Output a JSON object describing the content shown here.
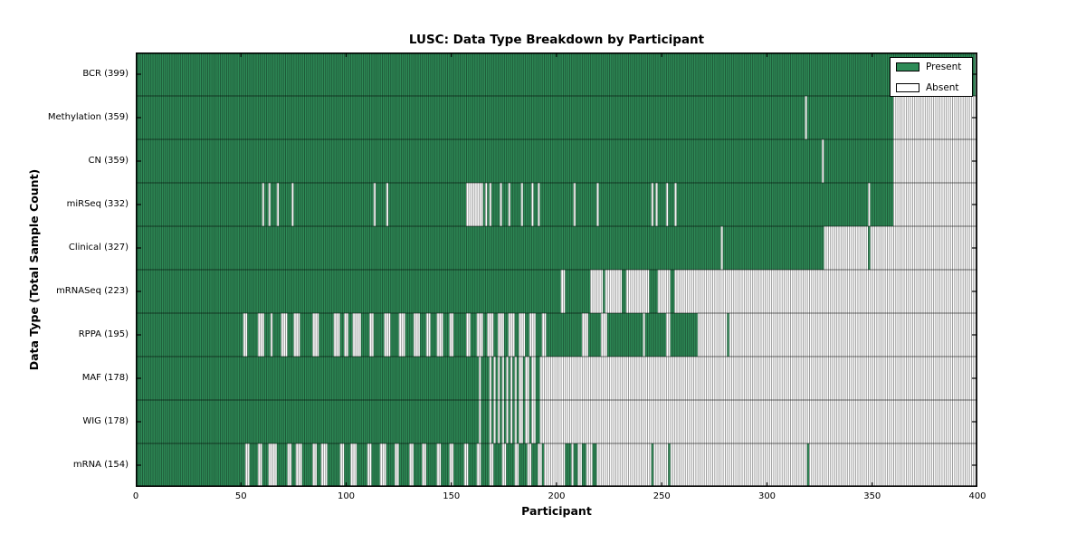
{
  "title": "LUSC: Data Type Breakdown by Participant",
  "legend": {
    "present_label": "Present",
    "absent_label": "Absent"
  },
  "colors": {
    "present": "#2e8b57",
    "absent": "#ffffff",
    "present_stripe": "rgba(0,0,0,0.38)",
    "absent_stripe": "rgba(0,0,0,0.42)",
    "frame": "#000000"
  },
  "chart_data": {
    "type": "heatmap",
    "title": "LUSC: Data Type Breakdown by Participant",
    "xlabel": "Participant",
    "ylabel": "Data Type (Total Sample Count)",
    "xlim": [
      0,
      400
    ],
    "x_ticks": [
      0,
      50,
      100,
      150,
      200,
      250,
      300,
      350,
      400
    ],
    "grid": false,
    "legend_entries": [
      "Present",
      "Absent"
    ],
    "legend_position": "upper right",
    "cell_states": [
      "present",
      "absent"
    ],
    "rows": [
      {
        "label": "BCR (399)",
        "name": "BCR",
        "total": 399,
        "present_ranges": [
          [
            0,
            399
          ]
        ]
      },
      {
        "label": "Methylation (359)",
        "name": "Methylation",
        "total": 359,
        "present_ranges": [
          [
            0,
            318
          ],
          [
            319,
            360
          ]
        ]
      },
      {
        "label": "CN (359)",
        "name": "CN",
        "total": 359,
        "present_ranges": [
          [
            0,
            326
          ],
          [
            327,
            360
          ]
        ]
      },
      {
        "label": "miRSeq (332)",
        "name": "miRSeq",
        "total": 332,
        "present_ranges": [
          [
            0,
            60
          ],
          [
            61,
            63
          ],
          [
            64,
            67
          ],
          [
            68,
            74
          ],
          [
            75,
            113
          ],
          [
            114,
            119
          ],
          [
            120,
            157
          ],
          [
            165,
            166
          ],
          [
            167,
            168
          ],
          [
            169,
            173
          ],
          [
            174,
            177
          ],
          [
            178,
            183
          ],
          [
            184,
            188
          ],
          [
            189,
            191
          ],
          [
            192,
            208
          ],
          [
            209,
            219
          ],
          [
            220,
            245
          ],
          [
            246,
            247
          ],
          [
            248,
            252
          ],
          [
            253,
            256
          ],
          [
            257,
            348
          ],
          [
            349,
            360
          ]
        ]
      },
      {
        "label": "Clinical (327)",
        "name": "Clinical",
        "total": 327,
        "present_ranges": [
          [
            0,
            278
          ],
          [
            279,
            327
          ],
          [
            348,
            349
          ]
        ]
      },
      {
        "label": "mRNASeq (223)",
        "name": "mRNASeq",
        "total": 223,
        "present_ranges": [
          [
            0,
            202
          ],
          [
            204,
            216
          ],
          [
            222,
            223
          ],
          [
            231,
            233
          ],
          [
            244,
            248
          ],
          [
            254,
            256
          ]
        ]
      },
      {
        "label": "RPPA (195)",
        "name": "RPPA",
        "total": 195,
        "present_ranges": [
          [
            0,
            51
          ],
          [
            53,
            58
          ],
          [
            61,
            64
          ],
          [
            65,
            69
          ],
          [
            72,
            75
          ],
          [
            78,
            84
          ],
          [
            87,
            94
          ],
          [
            97,
            99
          ],
          [
            101,
            103
          ],
          [
            107,
            111
          ],
          [
            113,
            118
          ],
          [
            121,
            125
          ],
          [
            128,
            132
          ],
          [
            135,
            138
          ],
          [
            140,
            143
          ],
          [
            146,
            149
          ],
          [
            151,
            157
          ],
          [
            159,
            162
          ],
          [
            165,
            167
          ],
          [
            170,
            172
          ],
          [
            175,
            177
          ],
          [
            180,
            182
          ],
          [
            185,
            187
          ],
          [
            190,
            193
          ],
          [
            195,
            212
          ],
          [
            215,
            221
          ],
          [
            224,
            241
          ],
          [
            242,
            252
          ],
          [
            254,
            267
          ],
          [
            281,
            282
          ]
        ]
      },
      {
        "label": "MAF (178)",
        "name": "MAF",
        "total": 178,
        "present_ranges": [
          [
            0,
            163
          ],
          [
            164,
            168
          ],
          [
            169,
            170
          ],
          [
            171,
            172
          ],
          [
            173,
            174
          ],
          [
            175,
            176
          ],
          [
            177,
            178
          ],
          [
            179,
            180
          ],
          [
            181,
            182
          ],
          [
            184,
            185
          ],
          [
            187,
            188
          ],
          [
            190,
            192
          ]
        ]
      },
      {
        "label": "WIG (178)",
        "name": "WIG",
        "total": 178,
        "present_ranges": [
          [
            0,
            163
          ],
          [
            164,
            168
          ],
          [
            169,
            170
          ],
          [
            171,
            172
          ],
          [
            173,
            174
          ],
          [
            175,
            176
          ],
          [
            177,
            178
          ],
          [
            179,
            180
          ],
          [
            181,
            182
          ],
          [
            184,
            185
          ],
          [
            187,
            188
          ],
          [
            190,
            192
          ]
        ]
      },
      {
        "label": "mRNA (154)",
        "name": "mRNA",
        "total": 154,
        "present_ranges": [
          [
            0,
            52
          ],
          [
            54,
            58
          ],
          [
            60,
            63
          ],
          [
            67,
            72
          ],
          [
            74,
            76
          ],
          [
            79,
            84
          ],
          [
            86,
            88
          ],
          [
            91,
            97
          ],
          [
            99,
            102
          ],
          [
            105,
            110
          ],
          [
            112,
            116
          ],
          [
            119,
            123
          ],
          [
            125,
            130
          ],
          [
            132,
            136
          ],
          [
            138,
            143
          ],
          [
            145,
            149
          ],
          [
            151,
            156
          ],
          [
            158,
            162
          ],
          [
            164,
            168
          ],
          [
            170,
            174
          ],
          [
            176,
            180
          ],
          [
            182,
            186
          ],
          [
            188,
            191
          ],
          [
            193,
            194
          ],
          [
            204,
            207
          ],
          [
            208,
            210
          ],
          [
            212,
            214
          ],
          [
            217,
            219
          ],
          [
            245,
            246
          ],
          [
            253,
            254
          ],
          [
            319,
            320
          ]
        ]
      }
    ]
  }
}
